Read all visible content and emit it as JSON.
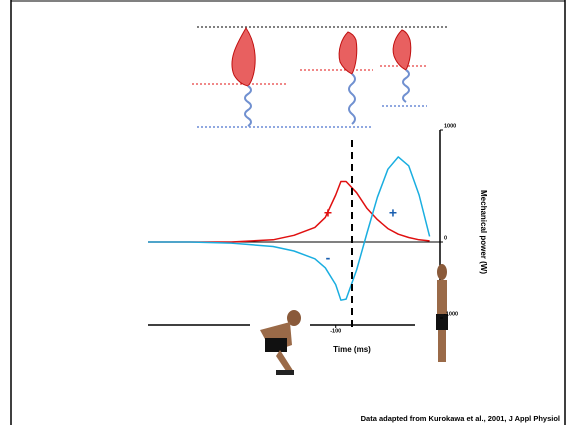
{
  "chart_data": {
    "type": "line",
    "x_label": "Time (ms)",
    "y_label": "Mechanical power (W)",
    "x": [
      -280,
      -240,
      -200,
      -160,
      -140,
      -120,
      -110,
      -100,
      -95,
      -90,
      -80,
      -70,
      -60,
      -50,
      -40,
      -30,
      -20,
      -10
    ],
    "series": [
      {
        "color": "#e01010",
        "values": [
          0,
          0,
          0,
          20,
          60,
          130,
          220,
          420,
          540,
          540,
          440,
          300,
          200,
          120,
          70,
          40,
          20,
          10
        ]
      },
      {
        "color": "#1aaee0",
        "values": [
          0,
          0,
          -10,
          -40,
          -80,
          -150,
          -230,
          -380,
          -520,
          -510,
          -250,
          80,
          400,
          650,
          760,
          680,
          420,
          50
        ]
      }
    ],
    "xlim": [
      -280,
      0
    ],
    "xticks": [
      -100
    ],
    "ylim": [
      -1000,
      1000
    ],
    "yticks": [
      1000,
      0,
      -1000
    ],
    "annotations": [
      {
        "text": "+",
        "color": "#e01010"
      },
      {
        "text": "+",
        "color": "#1a5fb0"
      },
      {
        "text": "-",
        "color": "#1a5fb0"
      }
    ],
    "source": "Data adapted from Kurokawa et al., 2001, J Appl Physiol"
  }
}
